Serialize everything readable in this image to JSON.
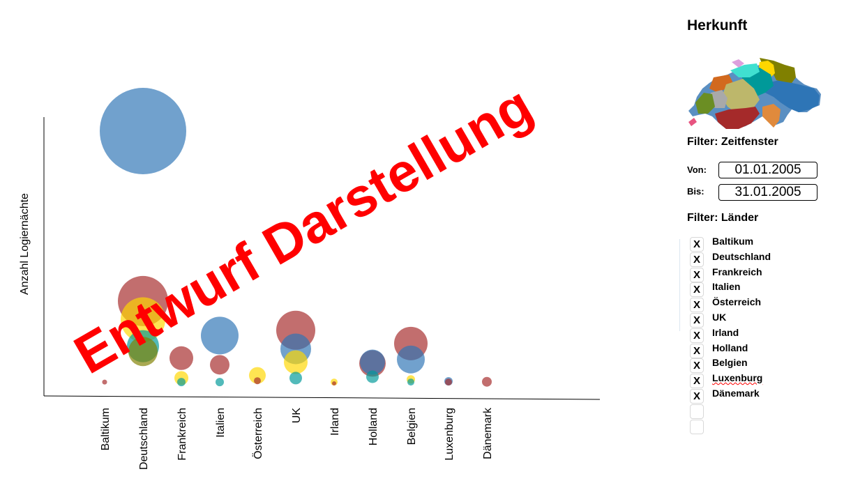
{
  "chart_data": {
    "type": "bubble",
    "ylabel": "Anzahl Logiernächte",
    "categories": [
      "Baltikum",
      "Deutschland",
      "Frankreich",
      "Italien",
      "Österreich",
      "UK",
      "Irland",
      "Holland",
      "Belgien",
      "Luxenburg",
      "Dänemark"
    ],
    "series": [
      {
        "color": "#2e75b6",
        "values": [
          0,
          95,
          0,
          18,
          0,
          13,
          0,
          8,
          9,
          0.8,
          0
        ],
        "sizes": [
          0,
          62,
          0,
          27,
          0,
          22,
          0,
          18,
          20,
          6,
          0
        ]
      },
      {
        "color": "#ffd700",
        "values": [
          0,
          24,
          2,
          0,
          3,
          8,
          0.5,
          0,
          1.5,
          0,
          0
        ],
        "sizes": [
          0,
          32,
          10,
          0,
          12,
          17,
          5,
          0,
          6,
          0,
          0
        ]
      },
      {
        "color": "#808000",
        "values": [
          0,
          12,
          0,
          0,
          0,
          0,
          0,
          0,
          0,
          0,
          0
        ],
        "sizes": [
          0,
          21,
          0,
          0,
          0,
          0,
          0,
          0,
          0,
          0,
          0
        ]
      },
      {
        "color": "#009999",
        "values": [
          0,
          14,
          0.5,
          0.5,
          0,
          2,
          0,
          2.5,
          0.5,
          0,
          0
        ],
        "sizes": [
          0,
          23,
          6,
          6,
          0,
          9,
          0,
          9,
          5,
          0,
          0
        ]
      },
      {
        "color": "#a52a2a",
        "values": [
          0.5,
          31,
          9.5,
          7,
          1,
          20,
          0,
          7.5,
          15,
          0.5,
          0.6
        ],
        "sizes": [
          3.5,
          36,
          17,
          14,
          5,
          28,
          3,
          19,
          24,
          5,
          7
        ]
      }
    ]
  },
  "watermark": "Entwurf Darstellung",
  "panel": {
    "title": "Herkunft",
    "zeitfenster_label": "Filter: Zeitfenster",
    "von_label": "Von:",
    "von_value": "01.01.2005",
    "bis_label": "Bis:",
    "bis_value": "31.01.2005",
    "laender_label": "Filter: Länder",
    "countries": [
      {
        "label": "Baltikum",
        "mark": "X"
      },
      {
        "label": "Deutschland",
        "mark": "X"
      },
      {
        "label": "Frankreich",
        "mark": "X"
      },
      {
        "label": "Italien",
        "mark": "X"
      },
      {
        "label": "Österreich",
        "mark": "X"
      },
      {
        "label": "UK",
        "mark": "X"
      },
      {
        "label": "Irland",
        "mark": "X"
      },
      {
        "label": "Holland",
        "mark": "X"
      },
      {
        "label": "Belgien",
        "mark": "X"
      },
      {
        "label": "Luxenburg",
        "mark": "X"
      },
      {
        "label": "Dänemark",
        "mark": "X"
      },
      {
        "label": "",
        "mark": ""
      },
      {
        "label": "",
        "mark": ""
      }
    ],
    "map_colors": [
      "#2e75b6",
      "#ffd700",
      "#808000",
      "#009999",
      "#a52a2a",
      "#e07020",
      "#6b8e23",
      "#bdb76b",
      "#a9a9a9",
      "#40e0d0",
      "#d2691e",
      "#e75480",
      "#dda0dd"
    ]
  }
}
